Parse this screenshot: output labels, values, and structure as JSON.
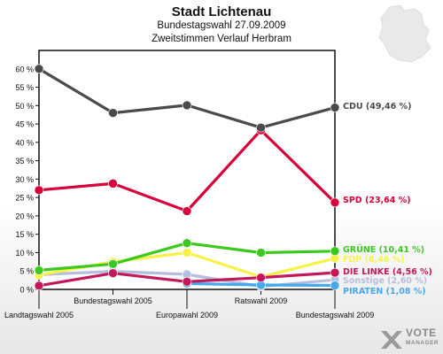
{
  "header": {
    "title": "Stadt Lichtenau",
    "subtitle1": "Bundestagswahl 27.09.2009",
    "subtitle2": "Zweitstimmen Verlauf Herbram"
  },
  "logo": {
    "word": "VOTE",
    "sub": "MANAGER"
  },
  "chart_data": {
    "type": "line",
    "categories": [
      "Landtagswahl 2005",
      "Bundestagswahl 2005",
      "Europawahl 2009",
      "Ratswahl 2009",
      "Bundestagswahl 2009"
    ],
    "ylim": [
      0,
      65
    ],
    "yticks": [
      0,
      5,
      10,
      15,
      20,
      25,
      30,
      35,
      40,
      45,
      50,
      55,
      60
    ],
    "ytick_labels": [
      "0 %",
      "5 %",
      "10 %",
      "15 %",
      "20 %",
      "25 %",
      "30 %",
      "35 %",
      "40 %",
      "45 %",
      "50 %",
      "55 %",
      "60 %"
    ],
    "grid": false,
    "series": [
      {
        "name": "Sonstige",
        "label": "Sonstige (2,60 %)",
        "color": "#b6bee0",
        "values": [
          4.0,
          4.9,
          4.1,
          0.8,
          2.6
        ]
      },
      {
        "name": "FDP",
        "label": "FDP (8,46 %)",
        "color": "#f6f24a",
        "values": [
          3.9,
          7.5,
          10.0,
          3.4,
          8.46
        ]
      },
      {
        "name": "PIRATEN",
        "label": "PIRATEN (1,08 %)",
        "color": "#46a8ec",
        "values": [
          null,
          null,
          1.6,
          1.2,
          1.08
        ]
      },
      {
        "name": "DIE LINKE",
        "label": "DIE LINKE (4,56 %)",
        "color": "#c3175c",
        "values": [
          1.0,
          4.4,
          2.1,
          3.2,
          4.56
        ]
      },
      {
        "name": "GRÜNE",
        "label": "GRÜNE (10,41 %)",
        "color": "#3cc81e",
        "values": [
          5.2,
          6.9,
          12.6,
          10.0,
          10.41
        ]
      },
      {
        "name": "SPD",
        "label": "SPD (23,64 %)",
        "color": "#d8003a",
        "values": [
          27.0,
          28.8,
          21.3,
          43.3,
          23.64
        ]
      },
      {
        "name": "CDU",
        "label": "CDU (49,46 %)",
        "color": "#4a4a4a",
        "values": [
          60.0,
          48.0,
          50.1,
          44.0,
          49.46
        ]
      }
    ],
    "legend_placement": "right, at series ends"
  }
}
